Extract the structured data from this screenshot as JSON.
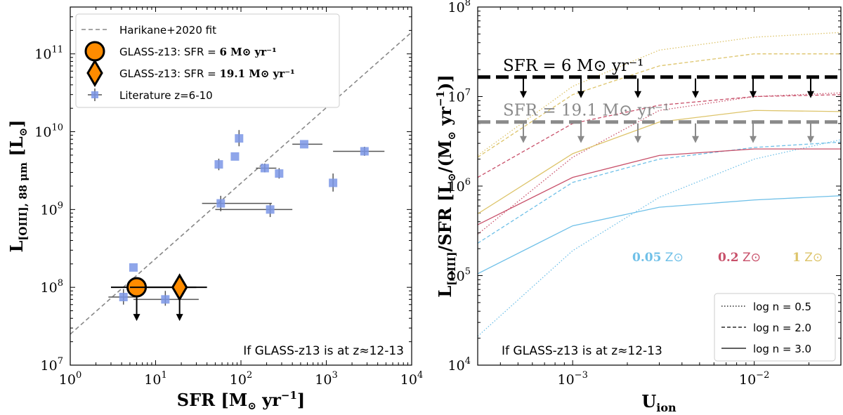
{
  "chart_data": [
    {
      "type": "scatter",
      "panel": "left",
      "xlabel": "SFR [M⊙ yr⁻¹]",
      "ylabel": "L[OIII], 88 μm [L⊙]",
      "xscale": "log",
      "yscale": "log",
      "xlim": [
        1,
        10000
      ],
      "ylim": [
        10000000,
        400000000000
      ],
      "xticks": [
        1,
        10,
        100,
        1000,
        10000
      ],
      "xtick_labels": [
        "10^0",
        "10^1",
        "10^2",
        "10^3",
        "10^4"
      ],
      "yticks": [
        10000000,
        100000000,
        1000000000,
        10000000000,
        100000000000
      ],
      "ytick_labels": [
        "10^7",
        "10^8",
        "10^9",
        "10^10",
        "10^11"
      ],
      "fit_line": {
        "name": "Harikane+2020 fit",
        "color": "#888888",
        "x": [
          1,
          10000
        ],
        "y": [
          25000000,
          190000000000
        ]
      },
      "glass_points": [
        {
          "name": "GLASS-z13: SFR = 6 M⊙ yr⁻¹",
          "legend_label": "GLASS-z13: SFR = ",
          "legend_value": "6 M⊙ yr⁻¹",
          "marker": "circle",
          "color": "#ff8c00",
          "sfr": 6,
          "sfr_lo": 3,
          "sfr_hi": 30,
          "L": 100000000,
          "upper_limit": true
        },
        {
          "name": "GLASS-z13: SFR = 19.1 M⊙ yr⁻¹",
          "legend_label": "GLASS-z13: SFR = ",
          "legend_value": "19.1 M⊙ yr⁻¹",
          "marker": "diamond",
          "color": "#ff8c00",
          "sfr": 19.1,
          "sfr_lo": 5,
          "sfr_hi": 40,
          "L": 100000000,
          "upper_limit": true
        }
      ],
      "literature": {
        "name": "Literature z=6-10",
        "color": "#7b96e6",
        "points": [
          {
            "x": 4.2,
            "y": 75000000,
            "xlo": 2.8,
            "xhi": 5.8,
            "ylo": 60000000,
            "yhi": 95000000
          },
          {
            "x": 5.5,
            "y": 180000000
          },
          {
            "x": 13,
            "y": 70000000,
            "xlo": 5.5,
            "xhi": 32,
            "ylo": 58000000,
            "yhi": 90000000
          },
          {
            "x": 55,
            "y": 3800000000,
            "ylo": 3200000000,
            "yhi": 4500000000
          },
          {
            "x": 58,
            "y": 1200000000,
            "xlo": 35,
            "xhi": 230,
            "ylo": 950000000,
            "yhi": 1500000000
          },
          {
            "x": 85,
            "y": 4800000000
          },
          {
            "x": 95,
            "y": 8200000000,
            "ylo": 6500000000,
            "yhi": 10500000000
          },
          {
            "x": 190,
            "y": 3400000000,
            "xlo": 150,
            "xhi": 260,
            "ylo": 3000000000,
            "yhi": 3900000000
          },
          {
            "x": 220,
            "y": 1000000000,
            "xlo": 50,
            "xhi": 400,
            "ylo": 800000000,
            "yhi": 1200000000
          },
          {
            "x": 280,
            "y": 2900000000,
            "ylo": 2500000000,
            "yhi": 3400000000
          },
          {
            "x": 550,
            "y": 6900000000,
            "xlo": 400,
            "xhi": 900
          },
          {
            "x": 1200,
            "y": 2200000000,
            "ylo": 1700000000,
            "yhi": 2900000000
          },
          {
            "x": 2800,
            "y": 5600000000,
            "xlo": 1200,
            "xhi": 4800,
            "ylo": 4900000000,
            "yhi": 6400000000
          }
        ]
      },
      "annotation": "If GLASS-z13 is at z≈12-13"
    },
    {
      "type": "line",
      "panel": "right",
      "xlabel": "Uion",
      "ylabel": "L[OIII]/SFR [L⊙/(M⊙ yr⁻¹)]",
      "xscale": "log",
      "yscale": "log",
      "xlim": [
        0.0003,
        0.03
      ],
      "ylim": [
        10000,
        100000000
      ],
      "xticks": [
        0.001,
        0.01
      ],
      "xtick_labels": [
        "10^−3",
        "10^−2"
      ],
      "yticks": [
        10000,
        100000,
        1000000,
        10000000,
        100000000
      ],
      "ytick_labels": [
        "10^4",
        "10^5",
        "10^6",
        "10^7",
        "10^8"
      ],
      "x": [
        0.0003,
        0.001,
        0.003,
        0.01,
        0.03
      ],
      "series": [
        {
          "name": "0.05 Z⊙",
          "density": "log n = 0.5",
          "color": "#6fc0e8",
          "style": "dotted",
          "values": [
            21000,
            190000,
            750000,
            2000000,
            3300000
          ]
        },
        {
          "name": "0.05 Z⊙",
          "density": "log n = 2.0",
          "color": "#6fc0e8",
          "style": "dashed",
          "values": [
            230000,
            1100000,
            2000000,
            2700000,
            3100000
          ]
        },
        {
          "name": "0.05 Z⊙",
          "density": "log n = 3.0",
          "color": "#6fc0e8",
          "style": "solid",
          "values": [
            105000,
            360000,
            580000,
            700000,
            780000
          ]
        },
        {
          "name": "0.2 Z⊙",
          "density": "log n = 0.5",
          "color": "#c8506a",
          "style": "dotted",
          "values": [
            290000,
            2100000,
            7000000,
            10000000,
            11000000
          ]
        },
        {
          "name": "0.2 Z⊙",
          "density": "log n = 2.0",
          "color": "#c8506a",
          "style": "dashed",
          "values": [
            1250000,
            5000000,
            8000000,
            10000000,
            10500000
          ]
        },
        {
          "name": "0.2 Z⊙",
          "density": "log n = 3.0",
          "color": "#c8506a",
          "style": "solid",
          "values": [
            370000,
            1250000,
            2200000,
            2600000,
            2600000
          ]
        },
        {
          "name": "1 Z⊙",
          "density": "log n = 0.5",
          "color": "#ddc46a",
          "style": "dotted",
          "values": [
            2200000,
            13000000,
            33000000,
            46000000,
            52000000
          ]
        },
        {
          "name": "1 Z⊙",
          "density": "log n = 2.0",
          "color": "#ddc46a",
          "style": "dashed",
          "values": [
            2100000,
            10500000,
            22000000,
            30000000,
            30000000
          ]
        },
        {
          "name": "1 Z⊙",
          "density": "log n = 3.0",
          "color": "#ddc46a",
          "style": "solid",
          "values": [
            490000,
            2300000,
            5200000,
            7000000,
            6800000
          ]
        }
      ],
      "limits": [
        {
          "label": "SFR = 6 M⊙ yr⁻¹",
          "value": 16500000,
          "color": "#000000"
        },
        {
          "label": "SFR = 19.1 M⊙ yr⁻¹",
          "value": 5200000,
          "color": "#8a8a8a"
        }
      ],
      "metallicity_labels": [
        {
          "value": "0.05",
          "unit": " Z⊙",
          "color": "#6fc0e8"
        },
        {
          "value": "0.2",
          "unit": " Z⊙",
          "color": "#c8506a"
        },
        {
          "value": "1",
          "unit": " Z⊙",
          "color": "#ddc46a"
        }
      ],
      "legend": [
        {
          "label": "log n = 0.5",
          "style": "dotted"
        },
        {
          "label": "log n = 2.0",
          "style": "dashed"
        },
        {
          "label": "log n = 3.0",
          "style": "solid"
        }
      ],
      "legend_position": "lower-right",
      "annotation": "If GLASS-z13 is at z≈12-13"
    }
  ]
}
